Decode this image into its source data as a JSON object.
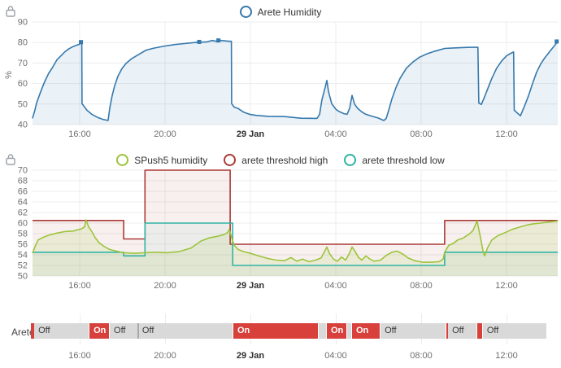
{
  "colors": {
    "blue": "#3579ad",
    "blue_fill": "rgba(53,121,173,0.10)",
    "green": "#9cc43c",
    "green_fill": "rgba(156,196,60,0.14)",
    "red": "#ab3a36",
    "red_fill": "rgba(171,58,54,0.08)",
    "teal": "#30b3a3",
    "teal_fill": "rgba(48,179,163,0.06)",
    "timeline_on": "#d8403c",
    "timeline_off": "#d9d9d9",
    "grid": "#ececec",
    "tick_text": "#707070",
    "tick_text_bold": "#2e2e2e"
  },
  "axis": {
    "t_min": 13.79,
    "t_max": 38.4,
    "x_ticks": [
      {
        "t": 16,
        "label": "16:00",
        "bold": false
      },
      {
        "t": 20,
        "label": "20:00",
        "bold": false
      },
      {
        "t": 24,
        "label": "29 Jan",
        "bold": true
      },
      {
        "t": 28,
        "label": "04:00",
        "bold": false
      },
      {
        "t": 32,
        "label": "08:00",
        "bold": false
      },
      {
        "t": 36,
        "label": "12:00",
        "bold": false
      }
    ]
  },
  "chart_data": [
    {
      "type": "line",
      "title": "",
      "ylabel": "%",
      "ylim": [
        40,
        90
      ],
      "y_ticks": [
        90,
        80,
        70,
        60,
        50,
        40
      ],
      "legend_position": "top-center",
      "grid": true,
      "series": [
        {
          "name": "Arete Humidity",
          "color_key": "blue",
          "fill_key": "blue_fill",
          "step": false,
          "markers": [
            [
              16.06,
              80.2
            ],
            [
              21.6,
              80.3
            ],
            [
              22.5,
              81
            ],
            [
              38.35,
              80.5
            ]
          ],
          "points": [
            [
              13.79,
              43
            ],
            [
              13.83,
              44.5
            ],
            [
              13.9,
              47
            ],
            [
              13.98,
              50.5
            ],
            [
              14.17,
              56
            ],
            [
              14.36,
              61
            ],
            [
              14.55,
              65
            ],
            [
              14.74,
              68
            ],
            [
              14.93,
              71.5
            ],
            [
              15.12,
              73.5
            ],
            [
              15.31,
              75.5
            ],
            [
              15.5,
              77
            ],
            [
              15.69,
              78
            ],
            [
              15.88,
              78.8
            ],
            [
              16.0,
              79.2
            ],
            [
              16.04,
              80.2
            ],
            [
              16.1,
              80.2
            ],
            [
              16.11,
              50.2
            ],
            [
              16.34,
              47
            ],
            [
              16.57,
              45
            ],
            [
              16.84,
              43.5
            ],
            [
              17.1,
              42.5
            ],
            [
              17.33,
              42
            ],
            [
              17.41,
              48
            ],
            [
              17.52,
              54
            ],
            [
              17.64,
              59
            ],
            [
              17.79,
              63.5
            ],
            [
              17.98,
              67.3
            ],
            [
              18.17,
              69.8
            ],
            [
              18.44,
              72.2
            ],
            [
              18.74,
              74
            ],
            [
              19.12,
              76.3
            ],
            [
              19.5,
              77.3
            ],
            [
              20.0,
              78.3
            ],
            [
              20.46,
              79
            ],
            [
              20.91,
              79.5
            ],
            [
              21.41,
              80
            ],
            [
              21.98,
              80.3
            ],
            [
              22.2,
              81
            ],
            [
              22.4,
              80.6
            ],
            [
              22.6,
              81
            ],
            [
              23.0,
              80.6
            ],
            [
              23.11,
              80.6
            ],
            [
              23.12,
              50.2
            ],
            [
              23.24,
              48.5
            ],
            [
              23.43,
              47.8
            ],
            [
              23.69,
              46
            ],
            [
              23.96,
              45
            ],
            [
              24.27,
              44.5
            ],
            [
              24.84,
              44
            ],
            [
              25.6,
              43.9
            ],
            [
              26.36,
              43.1
            ],
            [
              27.12,
              43
            ],
            [
              27.24,
              45
            ],
            [
              27.35,
              52
            ],
            [
              27.5,
              58
            ],
            [
              27.58,
              61.5
            ],
            [
              27.66,
              56
            ],
            [
              27.81,
              50.2
            ],
            [
              28.0,
              47.5
            ],
            [
              28.15,
              46.4
            ],
            [
              28.38,
              45.3
            ],
            [
              28.53,
              45
            ],
            [
              28.65,
              48
            ],
            [
              28.76,
              54.2
            ],
            [
              28.88,
              50
            ],
            [
              29.03,
              47.8
            ],
            [
              29.22,
              46.2
            ],
            [
              29.41,
              45
            ],
            [
              29.71,
              44
            ],
            [
              29.98,
              43.2
            ],
            [
              30.25,
              42
            ],
            [
              30.36,
              43
            ],
            [
              30.48,
              47
            ],
            [
              30.63,
              52.5
            ],
            [
              30.82,
              58
            ],
            [
              31.01,
              62.5
            ],
            [
              31.31,
              67.5
            ],
            [
              31.62,
              70.5
            ],
            [
              31.92,
              72.8
            ],
            [
              32.27,
              74.5
            ],
            [
              32.65,
              75.8
            ],
            [
              33.1,
              77.1
            ],
            [
              33.6,
              77.4
            ],
            [
              34.17,
              77.6
            ],
            [
              34.66,
              77.7
            ],
            [
              34.7,
              50.5
            ],
            [
              34.82,
              49.8
            ],
            [
              34.97,
              53.5
            ],
            [
              35.12,
              57.5
            ],
            [
              35.31,
              62.5
            ],
            [
              35.54,
              67.5
            ],
            [
              35.77,
              71
            ],
            [
              36.0,
              73.5
            ],
            [
              36.19,
              74.7
            ],
            [
              36.33,
              75.4
            ],
            [
              36.36,
              47
            ],
            [
              36.65,
              44.3
            ],
            [
              36.84,
              49
            ],
            [
              37.03,
              54
            ],
            [
              37.22,
              60
            ],
            [
              37.41,
              65.5
            ],
            [
              37.6,
              69.5
            ],
            [
              37.79,
              72.5
            ],
            [
              38.02,
              75.5
            ],
            [
              38.17,
              77.5
            ],
            [
              38.29,
              79
            ],
            [
              38.4,
              80.5
            ]
          ]
        }
      ]
    },
    {
      "type": "line",
      "title": "",
      "ylabel": "",
      "ylim": [
        50,
        70
      ],
      "y_ticks": [
        70,
        68,
        66,
        64,
        62,
        60,
        58,
        56,
        54,
        52,
        50
      ],
      "legend_position": "top-center",
      "grid": true,
      "series": [
        {
          "name": "arete threshold high",
          "color_key": "red",
          "fill_key": "red_fill",
          "step": true,
          "points": [
            [
              13.79,
              60.5
            ],
            [
              18.06,
              57
            ],
            [
              19.06,
              70
            ],
            [
              23.05,
              56
            ],
            [
              33.1,
              60.5
            ],
            [
              38.4,
              60.5
            ]
          ]
        },
        {
          "name": "arete threshold low",
          "color_key": "teal",
          "fill_key": "teal_fill",
          "step": true,
          "points": [
            [
              13.79,
              54.5
            ],
            [
              18.06,
              53.8
            ],
            [
              19.06,
              60
            ],
            [
              23.17,
              52
            ],
            [
              33.1,
              54.5
            ],
            [
              38.4,
              54.5
            ]
          ]
        },
        {
          "name": "SPush5 humidity",
          "color_key": "green",
          "fill_key": "green_fill",
          "step": false,
          "points": [
            [
              13.79,
              54.3
            ],
            [
              13.9,
              55.5
            ],
            [
              14.05,
              56.8
            ],
            [
              14.28,
              57.3
            ],
            [
              14.55,
              57.7
            ],
            [
              14.93,
              58.1
            ],
            [
              15.31,
              58.4
            ],
            [
              15.69,
              58.5
            ],
            [
              15.88,
              58.7
            ],
            [
              16.08,
              58.9
            ],
            [
              16.23,
              59.3
            ],
            [
              16.3,
              60.6
            ],
            [
              16.42,
              59.3
            ],
            [
              16.57,
              58.4
            ],
            [
              16.72,
              57.3
            ],
            [
              16.91,
              56.3
            ],
            [
              17.14,
              55.6
            ],
            [
              17.41,
              55.0
            ],
            [
              17.71,
              54.7
            ],
            [
              18.06,
              54.4
            ],
            [
              18.55,
              54.3
            ],
            [
              19.05,
              54.4
            ],
            [
              19.51,
              54.5
            ],
            [
              20.08,
              54.4
            ],
            [
              20.65,
              54.6
            ],
            [
              21.22,
              55.3
            ],
            [
              21.68,
              56.6
            ],
            [
              22.06,
              57.2
            ],
            [
              22.44,
              57.5
            ],
            [
              22.74,
              57.8
            ],
            [
              22.93,
              58.2
            ],
            [
              23.01,
              58.8
            ],
            [
              23.12,
              57.3
            ],
            [
              23.24,
              55.8
            ],
            [
              23.43,
              55.0
            ],
            [
              23.69,
              54.6
            ],
            [
              24.08,
              54.2
            ],
            [
              24.46,
              53.7
            ],
            [
              24.84,
              53.3
            ],
            [
              25.22,
              53.0
            ],
            [
              25.6,
              52.9
            ],
            [
              25.9,
              53.5
            ],
            [
              26.17,
              52.8
            ],
            [
              26.44,
              53.2
            ],
            [
              26.74,
              52.7
            ],
            [
              27.05,
              53.0
            ],
            [
              27.31,
              53.4
            ],
            [
              27.47,
              54.6
            ],
            [
              27.58,
              55.5
            ],
            [
              27.7,
              54.3
            ],
            [
              27.89,
              53.2
            ],
            [
              28.08,
              52.8
            ],
            [
              28.27,
              53.6
            ],
            [
              28.46,
              53.0
            ],
            [
              28.65,
              54.4
            ],
            [
              28.76,
              55.5
            ],
            [
              28.91,
              54.6
            ],
            [
              29.07,
              53.5
            ],
            [
              29.22,
              53.0
            ],
            [
              29.41,
              53.8
            ],
            [
              29.6,
              53.2
            ],
            [
              29.79,
              52.8
            ],
            [
              30.1,
              53.0
            ],
            [
              30.36,
              53.9
            ],
            [
              30.63,
              54.5
            ],
            [
              30.86,
              54.7
            ],
            [
              31.12,
              54.2
            ],
            [
              31.39,
              53.4
            ],
            [
              31.7,
              52.9
            ],
            [
              32.08,
              52.6
            ],
            [
              32.46,
              52.6
            ],
            [
              32.84,
              52.7
            ],
            [
              33.03,
              53.2
            ],
            [
              33.1,
              54.5
            ],
            [
              33.29,
              55.8
            ],
            [
              33.48,
              56.1
            ],
            [
              33.71,
              56.8
            ],
            [
              33.98,
              57.2
            ],
            [
              34.24,
              57.9
            ],
            [
              34.43,
              58.6
            ],
            [
              34.62,
              60.4
            ],
            [
              34.77,
              57.5
            ],
            [
              34.89,
              54.9
            ],
            [
              34.97,
              53.8
            ],
            [
              35.12,
              55.4
            ],
            [
              35.31,
              56.8
            ],
            [
              35.58,
              57.6
            ],
            [
              35.88,
              58.1
            ],
            [
              36.26,
              58.8
            ],
            [
              36.65,
              59.3
            ],
            [
              37.03,
              59.7
            ],
            [
              37.33,
              59.9
            ],
            [
              37.6,
              60.0
            ],
            [
              37.98,
              60.2
            ],
            [
              38.4,
              60.4
            ]
          ]
        }
      ],
      "legend_order": [
        "SPush5 humidity",
        "arete threshold high",
        "arete threshold low"
      ]
    },
    {
      "type": "timeline",
      "label": "Arete",
      "states": [
        {
          "from": 13.71,
          "to": 13.87,
          "state": "On",
          "label": ""
        },
        {
          "from": 13.87,
          "to": 16.46,
          "state": "Off",
          "label": "Off"
        },
        {
          "from": 16.46,
          "to": 17.41,
          "state": "On",
          "label": "On"
        },
        {
          "from": 17.41,
          "to": 18.74,
          "state": "Off",
          "label": "Off"
        },
        {
          "from": 18.74,
          "to": 23.2,
          "state": "Off",
          "label": "Off"
        },
        {
          "from": 23.2,
          "to": 27.2,
          "state": "On",
          "label": "On"
        },
        {
          "from": 27.2,
          "to": 27.58,
          "state": "Off",
          "label": ""
        },
        {
          "from": 27.58,
          "to": 28.53,
          "state": "On",
          "label": "On"
        },
        {
          "from": 28.53,
          "to": 28.76,
          "state": "Off",
          "label": ""
        },
        {
          "from": 28.76,
          "to": 30.1,
          "state": "On",
          "label": "On"
        },
        {
          "from": 30.1,
          "to": 33.18,
          "state": "Off",
          "label": "Off"
        },
        {
          "from": 33.18,
          "to": 33.26,
          "state": "On",
          "label": ""
        },
        {
          "from": 33.26,
          "to": 34.62,
          "state": "Off",
          "label": "Off"
        },
        {
          "from": 34.62,
          "to": 34.89,
          "state": "On",
          "label": ""
        },
        {
          "from": 34.89,
          "to": 37.9,
          "state": "Off",
          "label": "Off"
        }
      ],
      "dividers": [
        18.74
      ]
    }
  ]
}
